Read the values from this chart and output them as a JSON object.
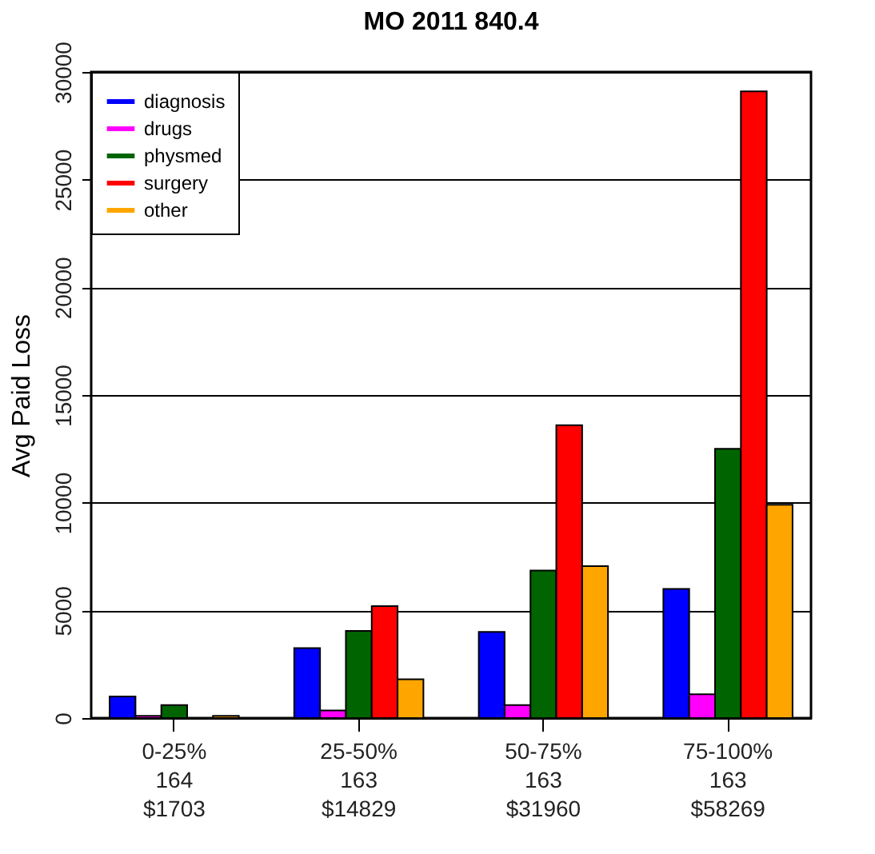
{
  "chart_data": {
    "type": "bar",
    "title": "MO 2011 840.4",
    "ylabel": "Avg Paid Loss",
    "categories": [
      "0-25%\n164\n$1703",
      "25-50%\n163\n$14829",
      "50-75%\n163\n$31960",
      "75-100%\n163\n$58269"
    ],
    "series": [
      {
        "name": "diagnosis",
        "color": "#0000ff",
        "values": [
          1000,
          3250,
          4000,
          6000
        ]
      },
      {
        "name": "drugs",
        "color": "#ff00ff",
        "values": [
          100,
          350,
          600,
          1100
        ]
      },
      {
        "name": "physmed",
        "color": "#006400",
        "values": [
          600,
          4050,
          6850,
          12500
        ]
      },
      {
        "name": "surgery",
        "color": "#ff0000",
        "values": [
          null,
          5200,
          13600,
          29100
        ]
      },
      {
        "name": "other",
        "color": "#ffa500",
        "values": [
          100,
          1800,
          7050,
          9900
        ]
      }
    ],
    "ylim": [
      0,
      30000
    ],
    "yticks": [
      0,
      5000,
      10000,
      15000,
      20000,
      25000,
      30000
    ],
    "grid": "y",
    "legend": "top left"
  }
}
